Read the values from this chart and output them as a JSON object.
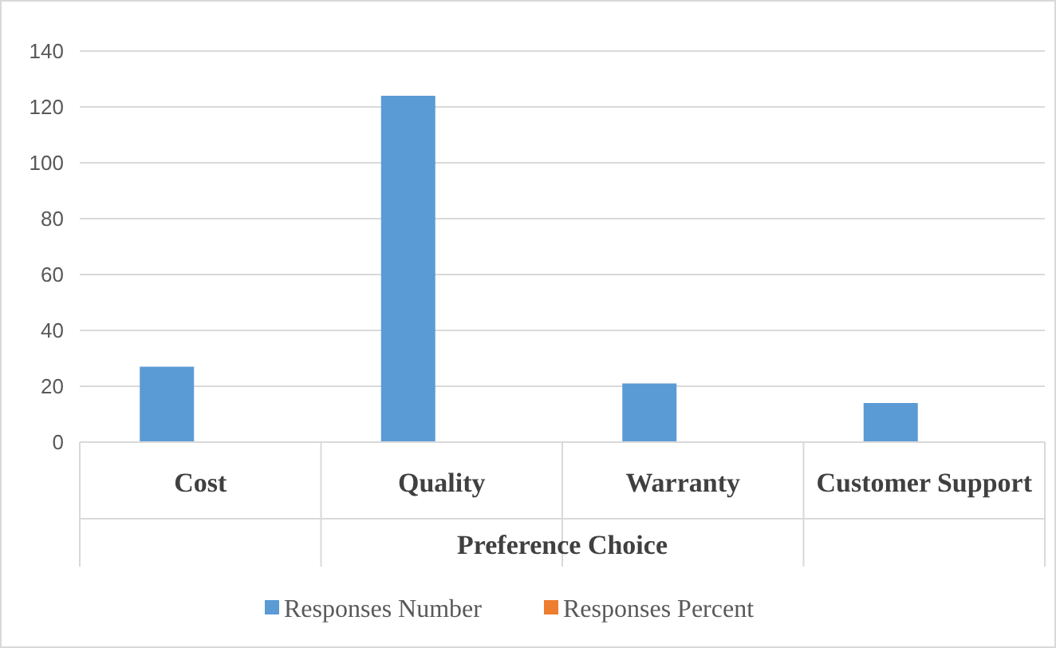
{
  "chart_data": {
    "type": "bar",
    "xlabel": "Preference Choice",
    "categories": [
      "Cost",
      "Quality",
      "Warranty",
      "Customer Support"
    ],
    "series": [
      {
        "name": "Responses Number",
        "color": "#5b9bd5",
        "values": [
          27,
          124,
          21,
          14
        ]
      },
      {
        "name": "Responses Percent",
        "color": "#ed7d31",
        "values": [
          0,
          0,
          0,
          0
        ]
      }
    ],
    "ylim": [
      0,
      140
    ],
    "yticks": [
      0,
      20,
      40,
      60,
      80,
      100,
      120,
      140
    ],
    "grid": "y",
    "legend": "bottom"
  }
}
